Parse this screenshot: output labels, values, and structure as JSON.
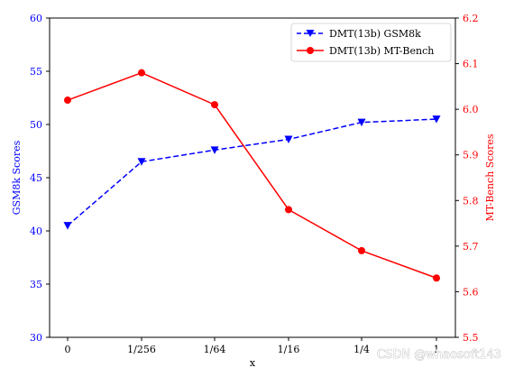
{
  "chart_data": {
    "type": "line",
    "categories": [
      "0",
      "1/256",
      "1/64",
      "1/16",
      "1/4",
      "1"
    ],
    "xlabel": "x",
    "left_axis": {
      "label": "GSM8k Scores",
      "ylim": [
        30,
        60
      ],
      "ticks": [
        "30",
        "35",
        "40",
        "45",
        "50",
        "55",
        "60"
      ],
      "color": "#0000ff"
    },
    "right_axis": {
      "label": "MT-Bench Scores",
      "ylim": [
        5.5,
        6.2
      ],
      "ticks": [
        "5.5",
        "5.6",
        "5.7",
        "5.8",
        "5.9",
        "6.0",
        "6.1",
        "6.2"
      ],
      "color": "#ff0000"
    },
    "series": [
      {
        "name": "DMT(13b) GSM8k",
        "axis": "left",
        "values": [
          40.5,
          46.5,
          47.6,
          48.6,
          50.2,
          50.5
        ],
        "color": "#0000ff",
        "style": "dashed",
        "marker": "triangle-down"
      },
      {
        "name": "DMT(13b) MT-Bench",
        "axis": "right",
        "values": [
          6.02,
          6.08,
          6.01,
          5.78,
          5.69,
          5.63
        ],
        "color": "#ff0000",
        "style": "solid",
        "marker": "circle"
      }
    ],
    "legend_position": "top-right",
    "grid": false
  },
  "watermark": "CSDN @whaosoft143"
}
